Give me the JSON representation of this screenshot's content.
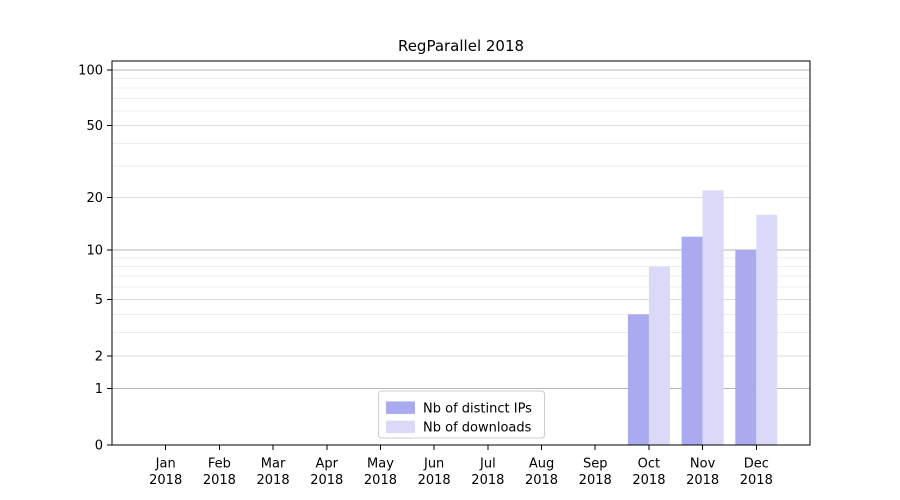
{
  "chart_data": {
    "type": "bar",
    "title": "RegParallel 2018",
    "categories": [
      "Jan",
      "Feb",
      "Mar",
      "Apr",
      "May",
      "Jun",
      "Jul",
      "Aug",
      "Sep",
      "Oct",
      "Nov",
      "Dec"
    ],
    "category_year": "2018",
    "series": [
      {
        "name": "Nb of distinct IPs",
        "color": "#aaaaf0",
        "values": [
          0,
          0,
          0,
          0,
          0,
          0,
          0,
          0,
          0,
          4,
          12,
          10
        ]
      },
      {
        "name": "Nb of downloads",
        "color": "#dadaf8",
        "values": [
          0,
          0,
          0,
          0,
          0,
          0,
          0,
          0,
          0,
          8,
          22,
          16
        ]
      }
    ],
    "xlabel": "",
    "ylabel": "",
    "yscale": "log1p",
    "ylim": [
      0,
      112
    ],
    "y_major_ticks": [
      0,
      1,
      2,
      5,
      10,
      20,
      50,
      100
    ],
    "y_minor_ticks": [
      3,
      4,
      6,
      7,
      8,
      9,
      30,
      40,
      60,
      70,
      80,
      90
    ],
    "grid": "y",
    "legend_position": "lower center"
  },
  "colors": {
    "background": "#ffffff",
    "spine": "#000000",
    "grid_decade": "#b5b5b5",
    "grid_labeled": "#dedede",
    "grid_minor": "#ededed",
    "legend_border": "#cccccc",
    "legend_background": "#ffffff",
    "text": "#000000"
  }
}
